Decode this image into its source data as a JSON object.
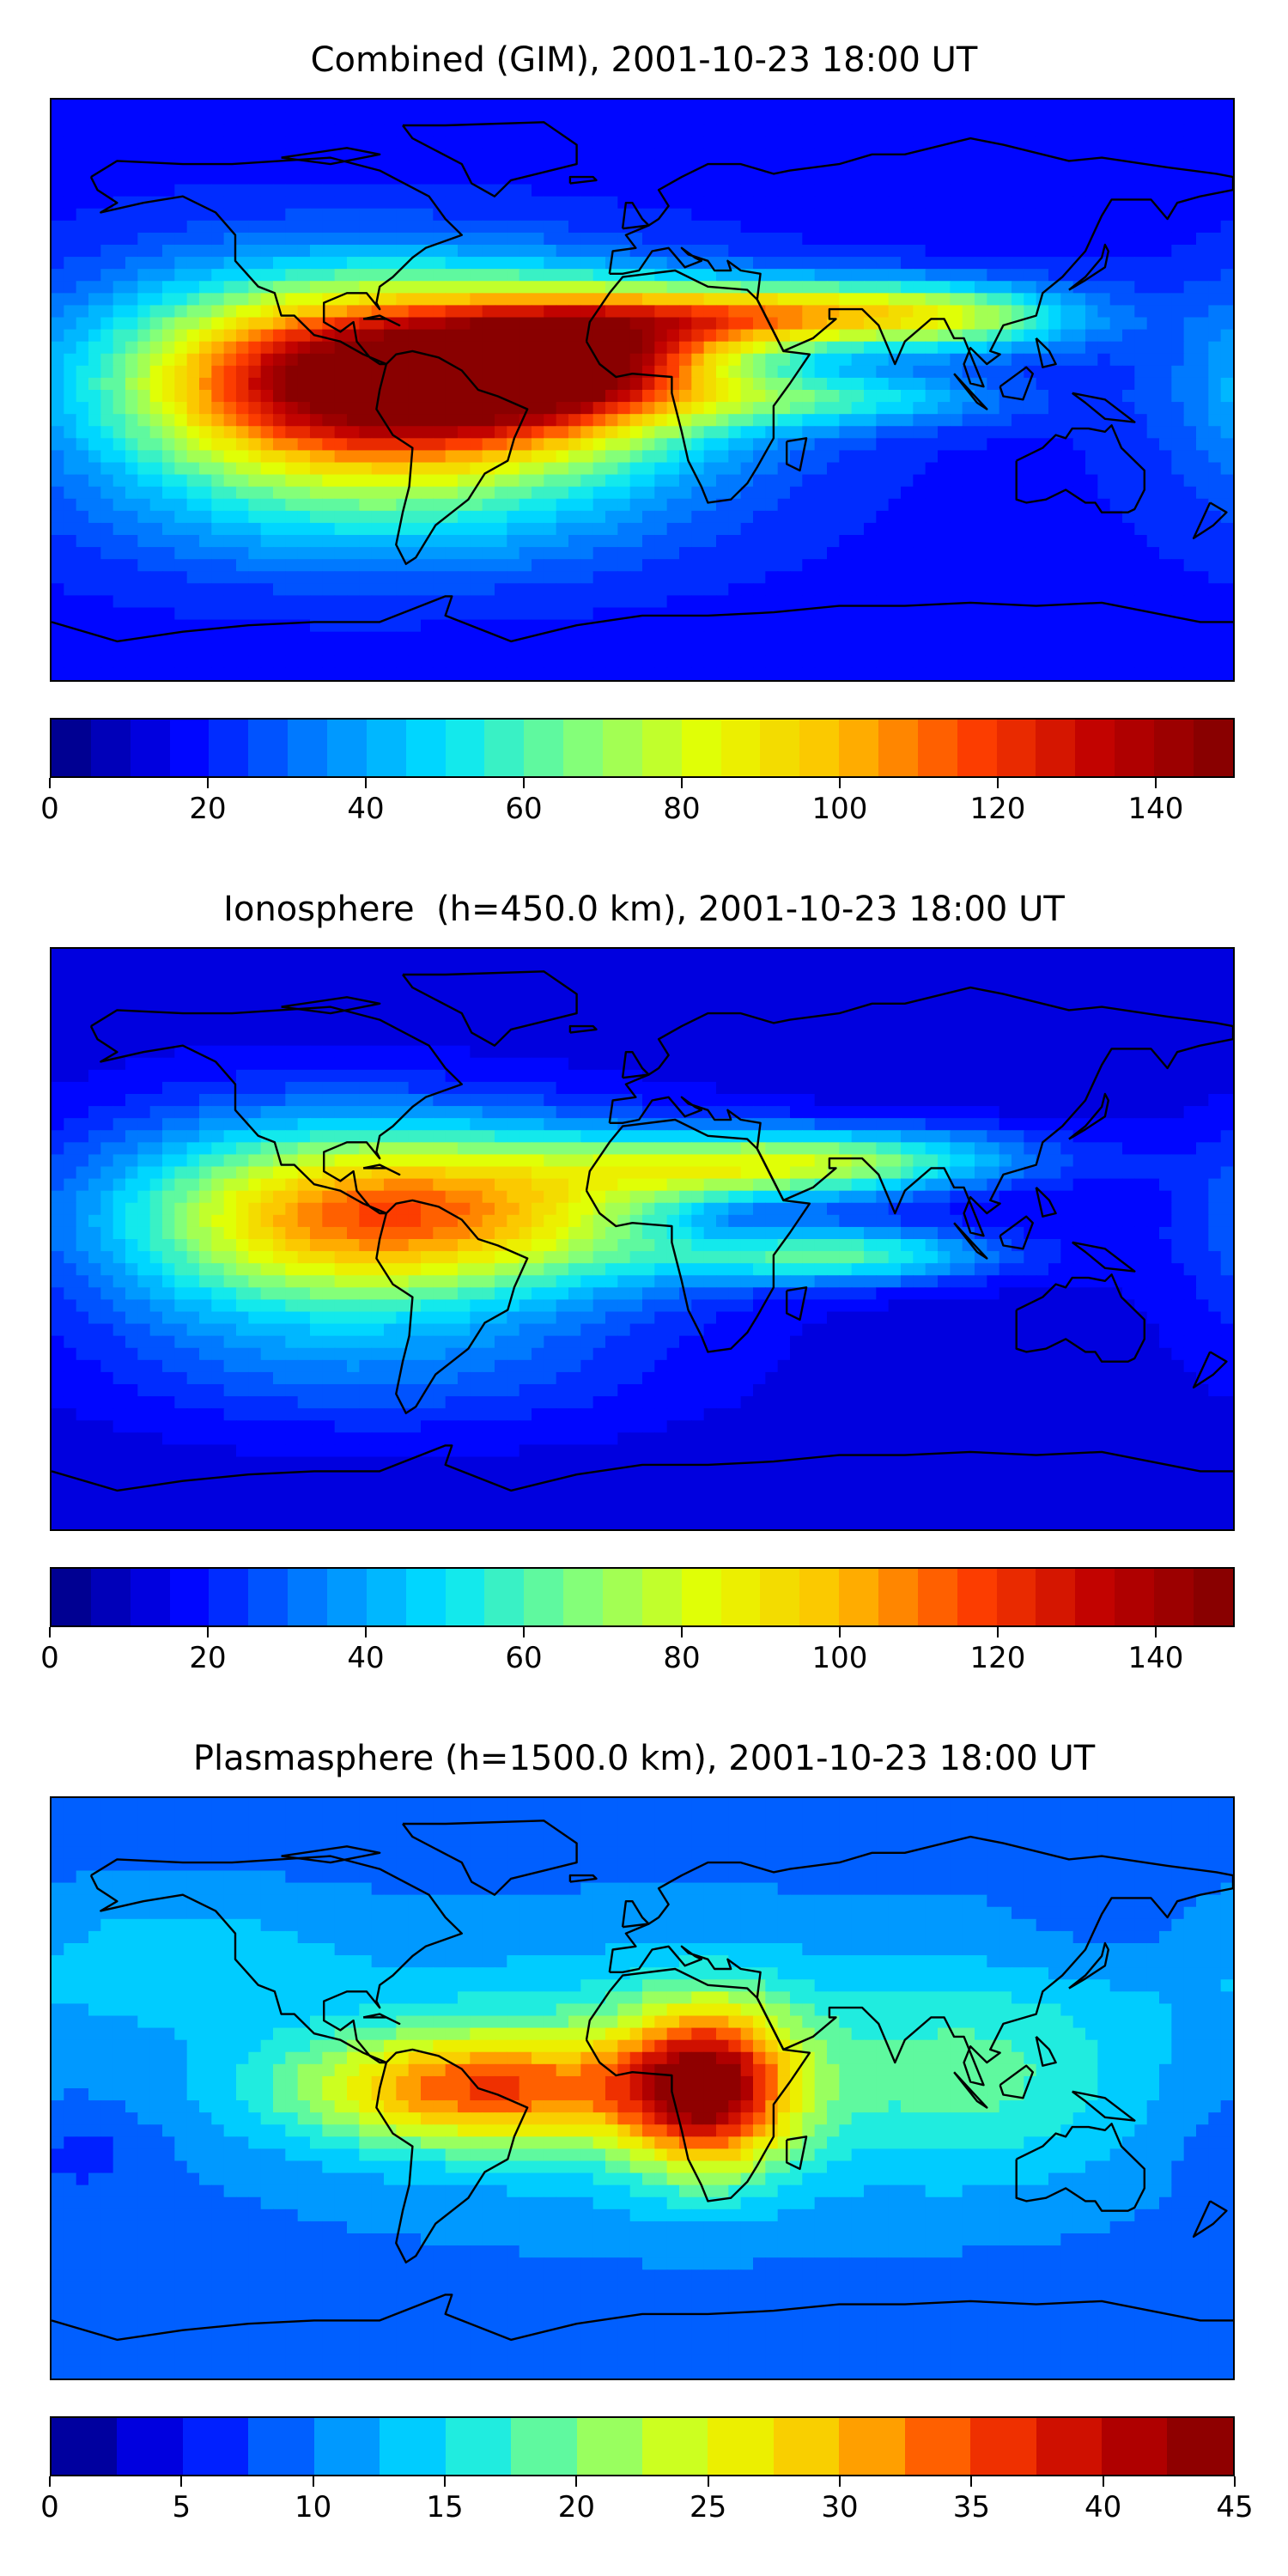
{
  "figure": {
    "panels": [
      {
        "id": "combined",
        "title": "Combined (GIM), 2001-10-23 18:00 UT",
        "colorbar": {
          "min": 0,
          "max": 150,
          "levels": 30,
          "ticks": [
            "0",
            "20",
            "40",
            "60",
            "80",
            "100",
            "120",
            "140"
          ],
          "tick_values": [
            0,
            20,
            40,
            60,
            80,
            100,
            120,
            140
          ]
        },
        "field": {
          "background": 18,
          "blobs": [
            {
              "lon": -60,
              "lat": 3,
              "sx": 55,
              "sy": 20,
              "amp": 128
            },
            {
              "lon": -20,
              "lat": 10,
              "sx": 30,
              "sy": 12,
              "amp": 55
            },
            {
              "lon": -110,
              "lat": 0,
              "sx": 45,
              "sy": 25,
              "amp": 40
            },
            {
              "lon": 25,
              "lat": 22,
              "sx": 40,
              "sy": 7,
              "amp": 48
            },
            {
              "lon": 70,
              "lat": 25,
              "sx": 40,
              "sy": 7,
              "amp": 40
            },
            {
              "lon": 100,
              "lat": 20,
              "sx": 25,
              "sy": 7,
              "amp": 25
            },
            {
              "lon": 60,
              "lat": -3,
              "sx": 35,
              "sy": 6,
              "amp": 30
            },
            {
              "lon": -70,
              "lat": -40,
              "sx": 60,
              "sy": 15,
              "amp": 18
            }
          ]
        }
      },
      {
        "id": "ionosphere",
        "title": "Ionosphere  (h=450.0 km), 2001-10-23 18:00 UT",
        "colorbar": {
          "min": 0,
          "max": 150,
          "levels": 30,
          "ticks": [
            "0",
            "20",
            "40",
            "60",
            "80",
            "100",
            "120",
            "140"
          ],
          "tick_values": [
            0,
            20,
            40,
            60,
            80,
            100,
            120,
            140
          ]
        },
        "field": {
          "background": 12,
          "blobs": [
            {
              "lon": -60,
              "lat": 8,
              "sx": 55,
              "sy": 18,
              "amp": 82
            },
            {
              "lon": -110,
              "lat": 3,
              "sx": 45,
              "sy": 25,
              "amp": 35
            },
            {
              "lon": 25,
              "lat": 22,
              "sx": 40,
              "sy": 7,
              "amp": 40
            },
            {
              "lon": 70,
              "lat": 25,
              "sx": 40,
              "sy": 7,
              "amp": 35
            },
            {
              "lon": 60,
              "lat": -5,
              "sx": 35,
              "sy": 6,
              "amp": 45
            },
            {
              "lon": -70,
              "lat": -40,
              "sx": 60,
              "sy": 15,
              "amp": 14
            },
            {
              "lon": 30,
              "lat": 5,
              "sx": 15,
              "sy": 6,
              "amp": -10
            }
          ]
        }
      },
      {
        "id": "plasmasphere",
        "title": "Plasmasphere (h=1500.0 km), 2001-10-23 18:00 UT",
        "colorbar": {
          "min": 0,
          "max": 45,
          "levels": 18,
          "ticks": [
            "0",
            "5",
            "10",
            "15",
            "20",
            "25",
            "30",
            "35",
            "40",
            "45"
          ],
          "tick_values": [
            0,
            5,
            10,
            15,
            20,
            25,
            30,
            35,
            40,
            45
          ]
        },
        "field": {
          "background": 9,
          "blobs": [
            {
              "lon": 20,
              "lat": 0,
              "sx": 18,
              "sy": 18,
              "amp": 27
            },
            {
              "lon": -50,
              "lat": 0,
              "sx": 40,
              "sy": 12,
              "amp": 20
            },
            {
              "lon": 0,
              "lat": 5,
              "sx": 80,
              "sy": 28,
              "amp": 8
            },
            {
              "lon": 110,
              "lat": 5,
              "sx": 35,
              "sy": 25,
              "amp": 6
            },
            {
              "lon": -150,
              "lat": 40,
              "sx": 40,
              "sy": 15,
              "amp": 5
            },
            {
              "lon": -170,
              "lat": -20,
              "sx": 15,
              "sy": 10,
              "amp": -3
            },
            {
              "lon": 150,
              "lat": 45,
              "sx": 30,
              "sy": 10,
              "amp": -2
            }
          ]
        }
      }
    ]
  },
  "colormap": [
    "#00007f",
    "#0000ff",
    "#007fff",
    "#00e5ff",
    "#7fff7f",
    "#e5ff00",
    "#ffbf00",
    "#ff4000",
    "#bf0000",
    "#7f0000"
  ],
  "icons": {
    "map": "world-map-icon",
    "colorbar": "colorbar-scale-icon"
  }
}
